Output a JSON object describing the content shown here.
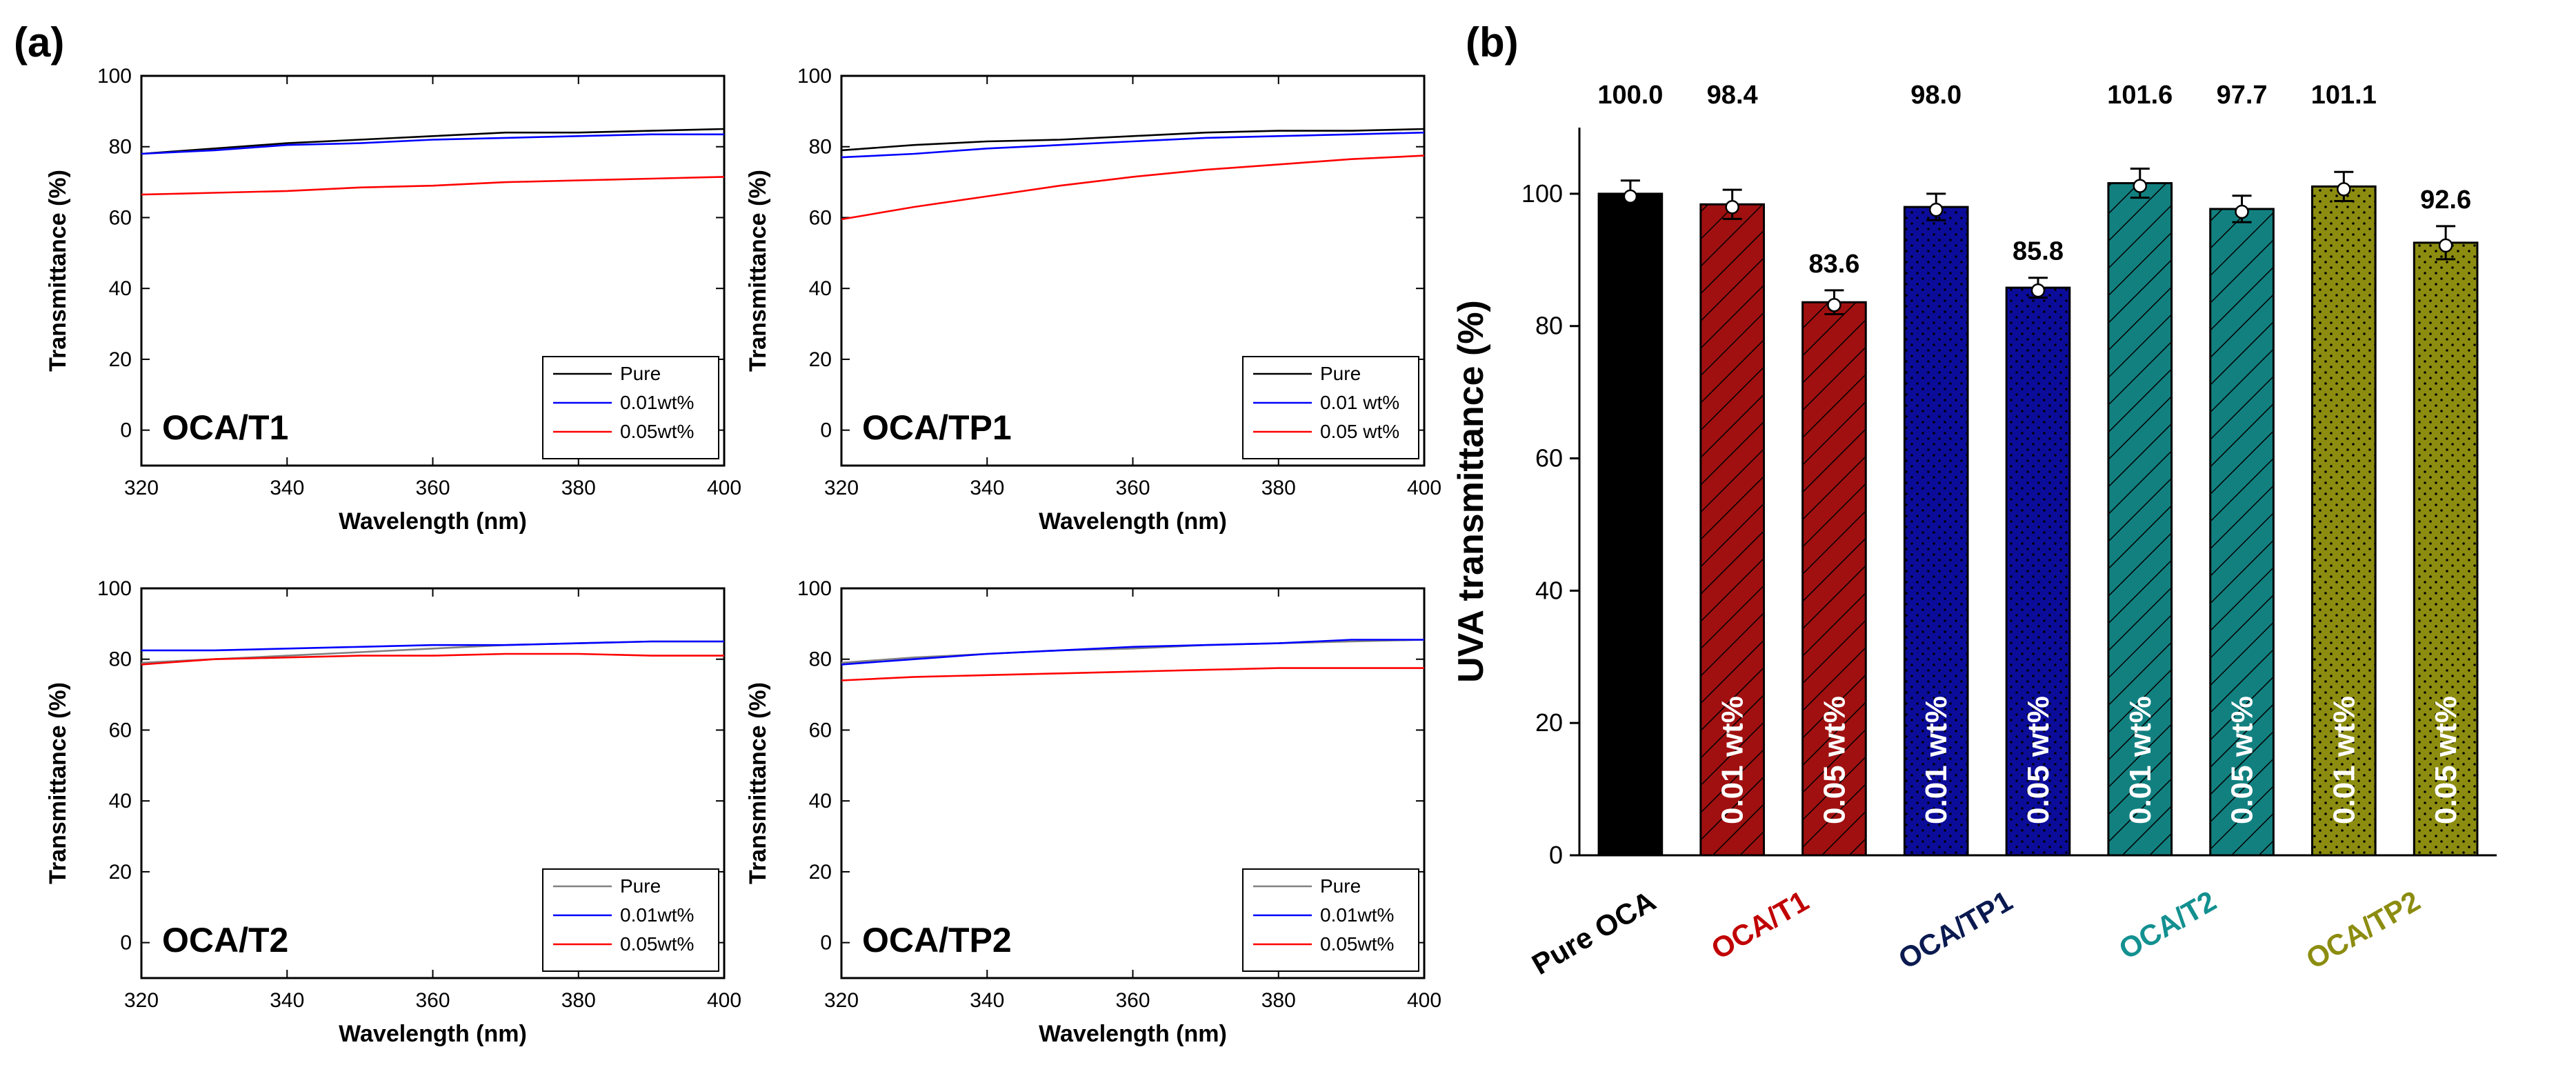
{
  "figure": {
    "label_a": "(a)",
    "label_b": "(b)"
  },
  "chart_data": [
    {
      "type": "line",
      "name": "OCA/T1",
      "xlabel": "Wavelength (nm)",
      "ylabel": "Transmittance (%)",
      "xlim": [
        320,
        400
      ],
      "ylim": [
        -10,
        100
      ],
      "xticks": [
        320,
        340,
        360,
        380,
        400
      ],
      "yticks": [
        0,
        20,
        40,
        60,
        80,
        100
      ],
      "legend_position": "bottom-right",
      "series": [
        {
          "name": "Pure",
          "color": "#000000",
          "x": [
            320,
            330,
            340,
            350,
            360,
            370,
            380,
            390,
            400
          ],
          "values": [
            78,
            79.5,
            81,
            82,
            83,
            84,
            84,
            84.5,
            85
          ]
        },
        {
          "name": "0.01wt%",
          "color": "#0000ff",
          "x": [
            320,
            330,
            340,
            350,
            360,
            370,
            380,
            390,
            400
          ],
          "values": [
            78,
            79,
            80.5,
            81,
            82,
            82.5,
            83,
            83.5,
            83.5
          ]
        },
        {
          "name": "0.05wt%",
          "color": "#ff0000",
          "x": [
            320,
            330,
            340,
            350,
            360,
            370,
            380,
            390,
            400
          ],
          "values": [
            66.5,
            67,
            67.5,
            68.5,
            69,
            70,
            70.5,
            71,
            71.5
          ]
        }
      ]
    },
    {
      "type": "line",
      "name": "OCA/TP1",
      "xlabel": "Wavelength (nm)",
      "ylabel": "Transmittance (%)",
      "xlim": [
        320,
        400
      ],
      "ylim": [
        -10,
        100
      ],
      "xticks": [
        320,
        340,
        360,
        380,
        400
      ],
      "yticks": [
        0,
        20,
        40,
        60,
        80,
        100
      ],
      "legend_position": "bottom-right",
      "series": [
        {
          "name": "Pure",
          "color": "#000000",
          "x": [
            320,
            330,
            340,
            350,
            360,
            370,
            380,
            390,
            400
          ],
          "values": [
            79,
            80.5,
            81.5,
            82,
            83,
            84,
            84.5,
            84.5,
            85
          ]
        },
        {
          "name": "0.01 wt%",
          "color": "#0000ff",
          "x": [
            320,
            330,
            340,
            350,
            360,
            370,
            380,
            390,
            400
          ],
          "values": [
            77,
            78,
            79.5,
            80.5,
            81.5,
            82.5,
            83,
            83.5,
            84
          ]
        },
        {
          "name": "0.05 wt%",
          "color": "#ff0000",
          "x": [
            320,
            330,
            340,
            350,
            360,
            370,
            380,
            390,
            400
          ],
          "values": [
            59.5,
            63,
            66,
            69,
            71.5,
            73.5,
            75,
            76.5,
            77.5
          ]
        }
      ]
    },
    {
      "type": "line",
      "name": "OCA/T2",
      "xlabel": "Wavelength (nm)",
      "ylabel": "Transmittance (%)",
      "xlim": [
        320,
        400
      ],
      "ylim": [
        -10,
        100
      ],
      "xticks": [
        320,
        340,
        360,
        380,
        400
      ],
      "yticks": [
        0,
        20,
        40,
        60,
        80,
        100
      ],
      "legend_position": "bottom-right",
      "series": [
        {
          "name": "Pure",
          "color": "#808080",
          "x": [
            320,
            330,
            340,
            350,
            360,
            370,
            380,
            390,
            400
          ],
          "values": [
            79,
            80,
            81,
            82,
            83,
            84,
            84.5,
            85,
            85
          ]
        },
        {
          "name": "0.01wt%",
          "color": "#0000ff",
          "x": [
            320,
            330,
            340,
            350,
            360,
            370,
            380,
            390,
            400
          ],
          "values": [
            82.5,
            82.5,
            83,
            83.5,
            84,
            84,
            84.5,
            85,
            85
          ]
        },
        {
          "name": "0.05wt%",
          "color": "#ff0000",
          "x": [
            320,
            330,
            340,
            350,
            360,
            370,
            380,
            390,
            400
          ],
          "values": [
            78.5,
            80,
            80.5,
            81,
            81,
            81.5,
            81.5,
            81,
            81
          ]
        }
      ]
    },
    {
      "type": "line",
      "name": "OCA/TP2",
      "xlabel": "Wavelength (nm)",
      "ylabel": "Transmittance (%)",
      "xlim": [
        320,
        400
      ],
      "ylim": [
        -10,
        100
      ],
      "xticks": [
        320,
        340,
        360,
        380,
        400
      ],
      "yticks": [
        0,
        20,
        40,
        60,
        80,
        100
      ],
      "legend_position": "bottom-right",
      "series": [
        {
          "name": "Pure",
          "color": "#808080",
          "x": [
            320,
            330,
            340,
            350,
            360,
            370,
            380,
            390,
            400
          ],
          "values": [
            79,
            80.5,
            81.5,
            82.5,
            83,
            84,
            84.5,
            85,
            85.5
          ]
        },
        {
          "name": "0.01wt%",
          "color": "#0000ff",
          "x": [
            320,
            330,
            340,
            350,
            360,
            370,
            380,
            390,
            400
          ],
          "values": [
            78.5,
            80,
            81.5,
            82.5,
            83.5,
            84,
            84.5,
            85.5,
            85.5
          ]
        },
        {
          "name": "0.05wt%",
          "color": "#ff0000",
          "x": [
            320,
            330,
            340,
            350,
            360,
            370,
            380,
            390,
            400
          ],
          "values": [
            74,
            75,
            75.5,
            76,
            76.5,
            77,
            77.5,
            77.5,
            77.5
          ]
        }
      ]
    },
    {
      "type": "bar",
      "ylabel": "UVA transmittance (%)",
      "ylim": [
        0,
        110
      ],
      "yticks": [
        0,
        20,
        40,
        60,
        80,
        100
      ],
      "bars": [
        {
          "value": 100.0,
          "label": "100.0",
          "error": 2.0,
          "inner_text": "",
          "color": "#000000",
          "pattern": "solid"
        },
        {
          "value": 98.4,
          "label": "98.4",
          "error": 2.2,
          "inner_text": "0.01 wt%",
          "color": "#a01010",
          "pattern": "hatch"
        },
        {
          "value": 83.6,
          "label": "83.6",
          "error": 1.8,
          "inner_text": "0.05 wt%",
          "color": "#a01010",
          "pattern": "hatch"
        },
        {
          "value": 98.0,
          "label": "98.0",
          "error": 2.0,
          "inner_text": "0.01 wt%",
          "color": "#0c0c9a",
          "pattern": "dots"
        },
        {
          "value": 85.8,
          "label": "85.8",
          "error": 1.5,
          "inner_text": "0.05 wt%",
          "color": "#0c0c9a",
          "pattern": "dots"
        },
        {
          "value": 101.6,
          "label": "101.6",
          "error": 2.2,
          "inner_text": "0.01 wt%",
          "color": "#138080",
          "pattern": "hatch"
        },
        {
          "value": 97.7,
          "label": "97.7",
          "error": 2.0,
          "inner_text": "0.05 wt%",
          "color": "#138080",
          "pattern": "hatch"
        },
        {
          "value": 101.1,
          "label": "101.1",
          "error": 2.2,
          "inner_text": "0.01 wt%",
          "color": "#8c8c10",
          "pattern": "dots"
        },
        {
          "value": 92.6,
          "label": "92.6",
          "error": 2.5,
          "inner_text": "0.05 wt%",
          "color": "#8c8c10",
          "pattern": "dots"
        }
      ],
      "categories": [
        {
          "name": "Pure OCA",
          "color": "#000000",
          "bars": [
            0
          ]
        },
        {
          "name": "OCA/T1",
          "color": "#c00000",
          "bars": [
            1,
            2
          ]
        },
        {
          "name": "OCA/TP1",
          "color": "#0a1a50",
          "bars": [
            3,
            4
          ]
        },
        {
          "name": "OCA/T2",
          "color": "#139090",
          "bars": [
            5,
            6
          ]
        },
        {
          "name": "OCA/TP2",
          "color": "#8c8c10",
          "bars": [
            7,
            8
          ]
        }
      ]
    }
  ]
}
